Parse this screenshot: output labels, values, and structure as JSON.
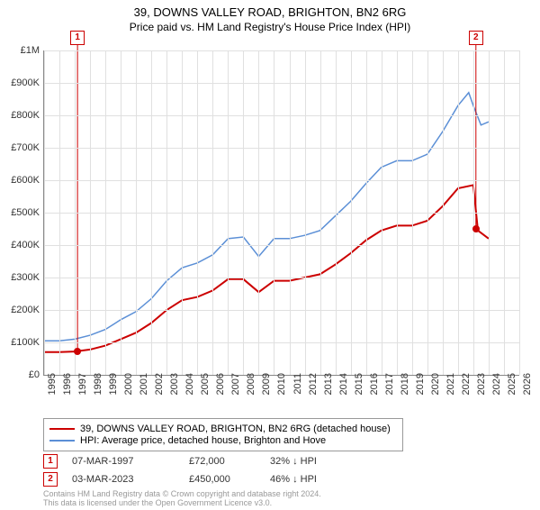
{
  "title": "39, DOWNS VALLEY ROAD, BRIGHTON, BN2 6RG",
  "subtitle": "Price paid vs. HM Land Registry's House Price Index (HPI)",
  "chart": {
    "type": "line",
    "background_color": "#ffffff",
    "grid_color": "#e0e0e0",
    "axis_color": "#888888",
    "x_years": [
      1995,
      1996,
      1997,
      1998,
      1999,
      2000,
      2001,
      2002,
      2003,
      2004,
      2005,
      2006,
      2007,
      2008,
      2009,
      2010,
      2011,
      2012,
      2013,
      2014,
      2015,
      2016,
      2017,
      2018,
      2019,
      2020,
      2021,
      2022,
      2023,
      2024,
      2025,
      2026
    ],
    "xlim": [
      1995,
      2026
    ],
    "ylim": [
      0,
      1000000
    ],
    "ytick_step": 100000,
    "label_fontsize": 11,
    "series": {
      "property": {
        "label": "39, DOWNS VALLEY ROAD, BRIGHTON, BN2 6RG (detached house)",
        "color": "#cc0000",
        "line_width": 2,
        "points": [
          [
            1995,
            70000
          ],
          [
            1996,
            70000
          ],
          [
            1997,
            72000
          ],
          [
            1998,
            78000
          ],
          [
            1999,
            90000
          ],
          [
            2000,
            110000
          ],
          [
            2001,
            130000
          ],
          [
            2002,
            160000
          ],
          [
            2003,
            200000
          ],
          [
            2004,
            230000
          ],
          [
            2005,
            240000
          ],
          [
            2006,
            260000
          ],
          [
            2007,
            295000
          ],
          [
            2008,
            295000
          ],
          [
            2009,
            255000
          ],
          [
            2010,
            290000
          ],
          [
            2011,
            290000
          ],
          [
            2012,
            300000
          ],
          [
            2013,
            310000
          ],
          [
            2014,
            340000
          ],
          [
            2015,
            375000
          ],
          [
            2016,
            415000
          ],
          [
            2017,
            445000
          ],
          [
            2018,
            460000
          ],
          [
            2019,
            460000
          ],
          [
            2020,
            475000
          ],
          [
            2021,
            520000
          ],
          [
            2022,
            575000
          ],
          [
            2023,
            585000
          ],
          [
            2023.3,
            445000
          ],
          [
            2024,
            420000
          ]
        ]
      },
      "hpi": {
        "label": "HPI: Average price, detached house, Brighton and Hove",
        "color": "#5b8fd6",
        "line_width": 1.5,
        "points": [
          [
            1995,
            105000
          ],
          [
            1996,
            105000
          ],
          [
            1997,
            110000
          ],
          [
            1998,
            122000
          ],
          [
            1999,
            140000
          ],
          [
            2000,
            170000
          ],
          [
            2001,
            195000
          ],
          [
            2002,
            235000
          ],
          [
            2003,
            290000
          ],
          [
            2004,
            330000
          ],
          [
            2005,
            345000
          ],
          [
            2006,
            370000
          ],
          [
            2007,
            420000
          ],
          [
            2008,
            425000
          ],
          [
            2009,
            365000
          ],
          [
            2010,
            420000
          ],
          [
            2011,
            420000
          ],
          [
            2012,
            430000
          ],
          [
            2013,
            445000
          ],
          [
            2014,
            490000
          ],
          [
            2015,
            535000
          ],
          [
            2016,
            590000
          ],
          [
            2017,
            640000
          ],
          [
            2018,
            660000
          ],
          [
            2019,
            660000
          ],
          [
            2020,
            680000
          ],
          [
            2021,
            750000
          ],
          [
            2022,
            830000
          ],
          [
            2022.7,
            870000
          ],
          [
            2023,
            830000
          ],
          [
            2023.5,
            770000
          ],
          [
            2024,
            780000
          ]
        ]
      }
    },
    "transaction_markers": [
      {
        "n": "1",
        "year": 1997.18,
        "price": 72000
      },
      {
        "n": "2",
        "year": 2023.17,
        "price": 450000
      }
    ],
    "marker_color": "#cc0000",
    "marker_style": "square-outlined"
  },
  "legend": {
    "items": [
      {
        "color": "#cc0000",
        "label_path": "chart.series.property.label"
      },
      {
        "color": "#5b8fd6",
        "label_path": "chart.series.hpi.label"
      }
    ],
    "border_color": "#999999",
    "fontsize": 11
  },
  "transactions": [
    {
      "n": "1",
      "date": "07-MAR-1997",
      "price": "£72,000",
      "diff": "32% ↓ HPI"
    },
    {
      "n": "2",
      "date": "03-MAR-2023",
      "price": "£450,000",
      "diff": "46% ↓ HPI"
    }
  ],
  "footer": {
    "line1": "Contains HM Land Registry data © Crown copyright and database right 2024.",
    "line2": "This data is licensed under the Open Government Licence v3.0."
  },
  "ytick_labels": [
    "£0",
    "£100K",
    "£200K",
    "£300K",
    "£400K",
    "£500K",
    "£600K",
    "£700K",
    "£800K",
    "£900K",
    "£1M"
  ]
}
